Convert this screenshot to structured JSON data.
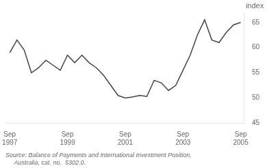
{
  "chart_data": {
    "type": "line",
    "ylabel": "index",
    "annotations": [
      "Source: Balance of Payments and International Investment Position,",
      "     Australia, cat. no.  5302.0."
    ],
    "categories": [
      "Sep\n1997",
      null,
      null,
      null,
      null,
      null,
      null,
      null,
      "Sep\n1999",
      null,
      null,
      null,
      null,
      null,
      null,
      null,
      "Sep\n2001",
      null,
      null,
      null,
      null,
      null,
      null,
      null,
      "Sep\n2003",
      null,
      null,
      null,
      null,
      null,
      null,
      null,
      "Sep\n2005"
    ],
    "values": [
      59.0,
      61.5,
      59.5,
      55.0,
      56.0,
      57.5,
      56.5,
      55.5,
      58.5,
      57.0,
      58.5,
      57.0,
      56.0,
      54.5,
      52.5,
      50.5,
      50.0,
      50.2,
      50.5,
      50.3,
      53.5,
      53.0,
      51.5,
      52.5,
      55.5,
      58.5,
      62.5,
      65.5,
      61.5,
      61.0,
      63.0,
      64.5,
      65.0
    ],
    "color": "#444444",
    "ylim": [
      45,
      67
    ],
    "yticks": [
      45,
      50,
      55,
      60,
      65
    ],
    "grid": false
  }
}
